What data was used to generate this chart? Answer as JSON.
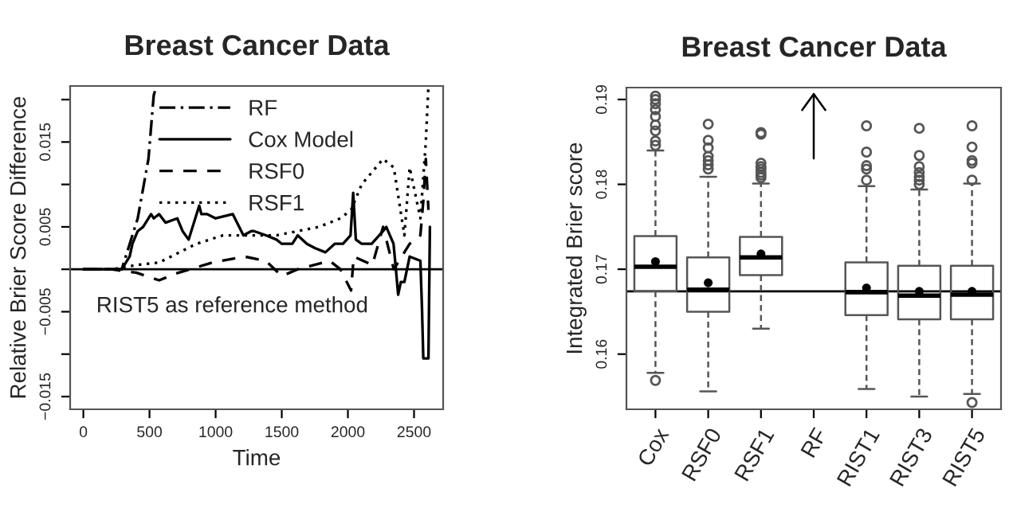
{
  "chart_data": [
    {
      "type": "line",
      "title": "Breast Cancer Data",
      "xlabel": "Time",
      "ylabel": "Relative Brier Score Difference",
      "xlim": [
        -100,
        2720
      ],
      "xticks": [
        0,
        500,
        1000,
        1500,
        2000,
        2500
      ],
      "ylim": [
        -0.0165,
        0.0216
      ],
      "yticks": [
        {
          "value": -0.015,
          "label": "−0.015"
        },
        {
          "value": -0.01,
          "label": null
        },
        {
          "value": -0.005,
          "label": "−0.005"
        },
        {
          "value": 0,
          "label": null
        },
        0.005,
        {
          "value": 0.01,
          "label": null
        },
        0.015,
        {
          "value": 0.02,
          "label": null
        }
      ],
      "grid": false,
      "legend": "top",
      "marker": "none",
      "ref_lines": [
        {
          "axis": "y",
          "value": 0,
          "label": null,
          "color": "#000000",
          "line_style": "solid"
        }
      ],
      "annotations": [
        "RIST5 as reference method"
      ],
      "series": [
        {
          "name": "RF",
          "color": "#000000",
          "line_style": "dashdot",
          "x": [
            0,
            290,
            411,
            492,
            532,
            552
          ],
          "values": [
            0,
            0,
            0.006,
            0.013,
            0.0205,
            0.0216
          ]
        },
        {
          "name": "Cox Model",
          "color": "#000000",
          "line_style": "solid",
          "x": [
            0,
            290,
            350,
            371,
            411,
            452,
            512,
            532,
            573,
            621,
            710,
            750,
            796,
            876,
            892,
            937,
            1000,
            1130,
            1210,
            1270,
            1290,
            1380,
            1460,
            1500,
            1580,
            1620,
            1690,
            1750,
            1830,
            1900,
            1963,
            2020,
            2040,
            2060,
            2104,
            2180,
            2266,
            2290,
            2345,
            2360,
            2380,
            2400,
            2427,
            2467,
            2548,
            2560,
            2570,
            2600,
            2609,
            2620
          ],
          "values": [
            0,
            0,
            0.0015,
            0.003,
            0.0045,
            0.005,
            0.0065,
            0.006,
            0.0065,
            0.0055,
            0.006,
            0.0045,
            0.0035,
            0.0075,
            0.0065,
            0.0065,
            0.006,
            0.0065,
            0.004,
            0.0045,
            0.0045,
            0.004,
            0.0035,
            0.003,
            0.003,
            0.004,
            0.003,
            0.0025,
            0.002,
            0.003,
            0.003,
            0.004,
            0.009,
            0.0035,
            0.003,
            0.003,
            0.0045,
            0.005,
            0.003,
            0.0005,
            -0.003,
            -0.0015,
            -0.0015,
            0.0015,
            0.001,
            -0.0045,
            -0.0105,
            -0.0105,
            -0.0105,
            0.005
          ]
        },
        {
          "name": "RSF0",
          "color": "#000000",
          "line_style": "dashed",
          "x": [
            0,
            210,
            400,
            573,
            700,
            976,
            1218,
            1379,
            1500,
            1620,
            1862,
            1943,
            2024,
            2044,
            2185,
            2266,
            2347,
            2467,
            2548,
            2570,
            2589,
            2609
          ],
          "values": [
            0,
            0,
            -0.0004,
            -0.0013,
            -0.0005,
            0.0008,
            0.0015,
            0.001,
            -0.0008,
            0.0,
            0.001,
            0.0,
            -0.0025,
            0.0015,
            0.0005,
            0.005,
            0.0,
            0.003,
            0.004,
            0.008,
            0.013,
            0.007
          ]
        },
        {
          "name": "RSF1",
          "color": "#000000",
          "line_style": "dotted",
          "x": [
            0,
            220,
            400,
            573,
            855,
            1056,
            1460,
            1782,
            1943,
            2024,
            2104,
            2266,
            2347,
            2427,
            2467,
            2548,
            2589,
            2609
          ],
          "values": [
            0,
            0,
            0.0005,
            0.0008,
            0.003,
            0.004,
            0.004,
            0.005,
            0.006,
            0.007,
            0.01,
            0.013,
            0.012,
            0.004,
            0.012,
            0.006,
            0.015,
            0.0216
          ]
        }
      ]
    },
    {
      "type": "box",
      "title": "Breast Cancer Data",
      "ylabel": "Integrated Brier score",
      "categories": [
        "Cox",
        "RSF0",
        "RSF1",
        "RF",
        "RIST1",
        "RIST3",
        "RIST5"
      ],
      "ylim": [
        0.1535,
        0.1914
      ],
      "yticks": [
        0.16,
        0.17,
        0.18,
        0.19
      ],
      "grid": false,
      "ref_lines": [
        {
          "axis": "y",
          "value": 0.1674,
          "label": null,
          "color": "#000000",
          "line_style": "solid"
        }
      ],
      "boxes": [
        {
          "low": 0.1578,
          "q1": 0.1674,
          "median": 0.1703,
          "q3": 0.1739,
          "high": 0.184,
          "mean": 0.1709,
          "outliers": [
            0.1569,
            0.1846,
            0.1851,
            0.1863,
            0.187,
            0.188,
            0.1888,
            0.1895,
            0.19,
            0.1904
          ]
        },
        {
          "low": 0.1556,
          "q1": 0.165,
          "median": 0.1676,
          "q3": 0.1714,
          "high": 0.1809,
          "mean": 0.1684,
          "outliers": [
            0.1818,
            0.1823,
            0.1828,
            0.1833,
            0.1843,
            0.1852,
            0.1871
          ]
        },
        {
          "low": 0.163,
          "q1": 0.1693,
          "median": 0.1714,
          "q3": 0.1738,
          "high": 0.1801,
          "mean": 0.1718,
          "outliers": [
            0.1808,
            0.1811,
            0.1814,
            0.1818,
            0.1821,
            0.1825,
            0.1859,
            0.1861
          ]
        },
        null,
        {
          "low": 0.1559,
          "q1": 0.1646,
          "median": 0.1673,
          "q3": 0.1708,
          "high": 0.1798,
          "mean": 0.1678,
          "outliers": [
            0.1805,
            0.1818,
            0.1822,
            0.1838,
            0.1869
          ]
        },
        {
          "low": 0.155,
          "q1": 0.1641,
          "median": 0.1669,
          "q3": 0.1704,
          "high": 0.1794,
          "mean": 0.1674,
          "outliers": [
            0.18,
            0.1805,
            0.1809,
            0.1814,
            0.1821,
            0.1834,
            0.1866
          ]
        },
        {
          "low": 0.1553,
          "q1": 0.1641,
          "median": 0.167,
          "q3": 0.1704,
          "high": 0.1801,
          "mean": 0.1674,
          "outliers": [
            0.1543,
            0.1805,
            0.1825,
            0.1828,
            0.1844,
            0.1869
          ]
        }
      ]
    }
  ]
}
